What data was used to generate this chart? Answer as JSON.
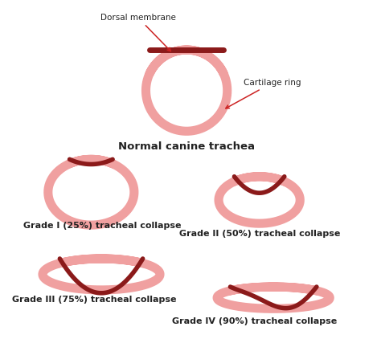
{
  "bg_color": "#ffffff",
  "pink_color": "#f0a0a0",
  "dark_red_color": "#8b1a1a",
  "text_color": "#222222",
  "arrow_color": "#cc2222",
  "title_fontsize": 9.5,
  "label_fontsize": 8.0,
  "annotation_fontsize": 7.5,
  "labels": {
    "normal": "Normal canine trachea",
    "grade1": "Grade I (25%) tracheal collapse",
    "grade2": "Grade II (50%) tracheal collapse",
    "grade3": "Grade III (75%) tracheal collapse",
    "grade4": "Grade IV (90%) tracheal collapse",
    "dorsal": "Dorsal membrane",
    "cartilage": "Cartilage ring"
  }
}
